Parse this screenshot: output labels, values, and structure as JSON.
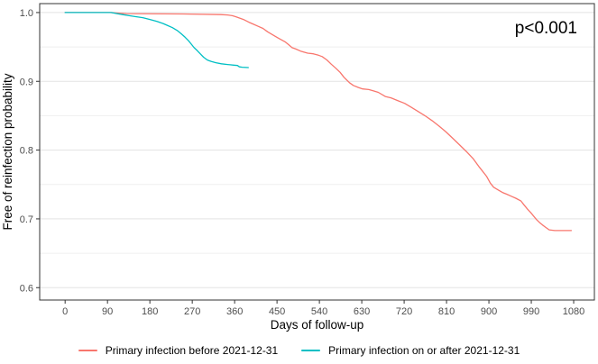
{
  "chart_data": {
    "type": "line",
    "subtype": "kaplan-meier-survival",
    "title": "",
    "xlabel": "Days of follow-up",
    "ylabel": "Free of reinfection probability",
    "annotation": "p<0.001",
    "x_ticks": [
      0,
      90,
      180,
      270,
      360,
      450,
      540,
      630,
      720,
      810,
      900,
      990,
      1080
    ],
    "y_ticks": [
      1.0,
      0.9,
      0.8,
      0.7,
      0.6
    ],
    "y_minor_ticks": [
      0.95,
      0.85,
      0.75,
      0.65
    ],
    "xlim": [
      -54,
      1124
    ],
    "ylim": [
      0.582,
      1.013
    ],
    "grid": "horizontal-only",
    "legend_position": "bottom",
    "colors": {
      "grid_major": "#e3e3e3",
      "grid_minor": "#efefef",
      "panel_border": "#333333",
      "tick": "#333333",
      "tick_label": "#4d4d4d",
      "axis_title": "#000000",
      "annotation_text": "#000000"
    },
    "series": [
      {
        "name": "Primary infection before 2021-12-31",
        "color": "#F8766D",
        "end_value": 0.683,
        "points": [
          [
            0,
            1
          ],
          [
            95,
            1
          ],
          [
            130,
            0.9985
          ],
          [
            250,
            0.998
          ],
          [
            330,
            0.997
          ],
          [
            345,
            0.9965
          ],
          [
            355,
            0.9955
          ],
          [
            362,
            0.994
          ],
          [
            370,
            0.992
          ],
          [
            380,
            0.9895
          ],
          [
            390,
            0.986
          ],
          [
            400,
            0.983
          ],
          [
            410,
            0.98
          ],
          [
            420,
            0.977
          ],
          [
            430,
            0.972
          ],
          [
            445,
            0.966
          ],
          [
            455,
            0.962
          ],
          [
            468,
            0.957
          ],
          [
            475,
            0.953
          ],
          [
            482,
            0.949
          ],
          [
            490,
            0.947
          ],
          [
            500,
            0.944
          ],
          [
            515,
            0.941
          ],
          [
            527,
            0.94
          ],
          [
            538,
            0.938
          ],
          [
            546,
            0.936
          ],
          [
            556,
            0.931
          ],
          [
            565,
            0.925
          ],
          [
            575,
            0.919
          ],
          [
            584,
            0.913
          ],
          [
            592,
            0.906
          ],
          [
            604,
            0.898
          ],
          [
            612,
            0.894
          ],
          [
            623,
            0.891
          ],
          [
            632,
            0.889
          ],
          [
            645,
            0.888
          ],
          [
            655,
            0.886
          ],
          [
            665,
            0.884
          ],
          [
            680,
            0.878
          ],
          [
            692,
            0.876
          ],
          [
            706,
            0.872
          ],
          [
            721,
            0.868
          ],
          [
            736,
            0.862
          ],
          [
            750,
            0.856
          ],
          [
            764,
            0.85
          ],
          [
            779,
            0.843
          ],
          [
            794,
            0.835
          ],
          [
            808,
            0.827
          ],
          [
            822,
            0.818
          ],
          [
            837,
            0.808
          ],
          [
            852,
            0.798
          ],
          [
            866,
            0.788
          ],
          [
            880,
            0.775
          ],
          [
            895,
            0.762
          ],
          [
            903,
            0.752
          ],
          [
            910,
            0.746
          ],
          [
            920,
            0.742
          ],
          [
            930,
            0.738
          ],
          [
            937,
            0.736
          ],
          [
            947,
            0.733
          ],
          [
            957,
            0.73
          ],
          [
            968,
            0.726
          ],
          [
            975,
            0.72
          ],
          [
            982,
            0.714
          ],
          [
            989,
            0.709
          ],
          [
            995,
            0.704
          ],
          [
            1001,
            0.699
          ],
          [
            1007,
            0.695
          ],
          [
            1014,
            0.691
          ],
          [
            1020,
            0.688
          ],
          [
            1028,
            0.684
          ],
          [
            1040,
            0.683
          ],
          [
            1075,
            0.683
          ]
        ]
      },
      {
        "name": "Primary infection on or after 2021-12-31",
        "color": "#00BFC4",
        "end_value": 0.92,
        "points": [
          [
            0,
            1
          ],
          [
            98,
            1
          ],
          [
            110,
            0.9985
          ],
          [
            122,
            0.997
          ],
          [
            136,
            0.9955
          ],
          [
            150,
            0.994
          ],
          [
            165,
            0.9925
          ],
          [
            180,
            0.99
          ],
          [
            195,
            0.987
          ],
          [
            208,
            0.984
          ],
          [
            218,
            0.981
          ],
          [
            228,
            0.978
          ],
          [
            238,
            0.974
          ],
          [
            247,
            0.969
          ],
          [
            255,
            0.964
          ],
          [
            262,
            0.959
          ],
          [
            268,
            0.954
          ],
          [
            274,
            0.949
          ],
          [
            280,
            0.945
          ],
          [
            287,
            0.94
          ],
          [
            294,
            0.935
          ],
          [
            302,
            0.931
          ],
          [
            310,
            0.929
          ],
          [
            320,
            0.927
          ],
          [
            332,
            0.9255
          ],
          [
            345,
            0.9245
          ],
          [
            358,
            0.9235
          ],
          [
            366,
            0.923
          ],
          [
            370,
            0.921
          ],
          [
            376,
            0.9205
          ],
          [
            389,
            0.92
          ]
        ]
      }
    ]
  }
}
